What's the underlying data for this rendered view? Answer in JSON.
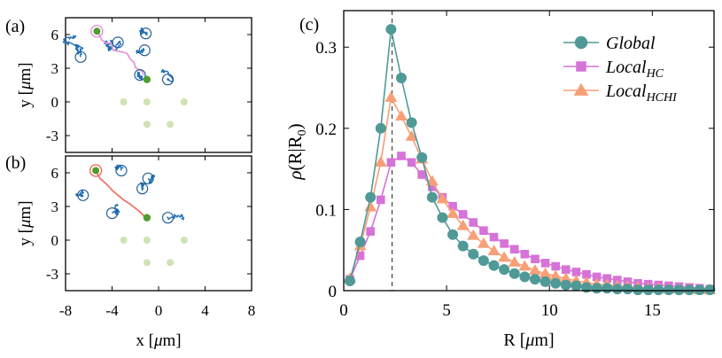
{
  "colors": {
    "global": "#4f9a97",
    "local_hc": "#d672d8",
    "local_hchi": "#f7a077",
    "traj_blue": "#1f6fb5",
    "traj_pink": "#e49ad8",
    "traj_red": "#ee7468",
    "target_green": "#4f9d2e",
    "faint_green": "#cfe3b6",
    "marker_edge_blue": "#235f9a"
  },
  "panels": {
    "a": {
      "label": "(a)",
      "ylabel_y": "y [",
      "ylabel_mu": "μ",
      "ylabel_m": "m]",
      "yticks": [
        "6",
        "3",
        "0",
        "-3"
      ],
      "ytick_values": [
        6,
        3,
        0,
        -3
      ],
      "ylim": [
        -4.5,
        7.5
      ],
      "xlim": [
        -8,
        8
      ]
    },
    "b": {
      "label": "(b)",
      "ylabel_y": "y [",
      "ylabel_mu": "μ",
      "ylabel_m": "m]",
      "yticks": [
        "6",
        "3",
        "0",
        "-3"
      ],
      "ytick_values": [
        6,
        3,
        0,
        -3
      ],
      "ylim": [
        -4.5,
        7.5
      ],
      "xlim": [
        -8,
        8
      ],
      "xticks": [
        "-8",
        "-4",
        "0",
        "4",
        "8"
      ],
      "xtick_values": [
        -8,
        -4,
        0,
        4,
        8
      ],
      "xlabel_x": "x [",
      "xlabel_mu": "μ",
      "xlabel_m": "m]"
    },
    "c": {
      "label": "(c)"
    }
  },
  "chart_data": [
    {
      "panel": "a",
      "type": "scatter",
      "title": "",
      "xlabel": "x [μm]",
      "ylabel": "y [μm]",
      "xlim": [
        -8,
        8
      ],
      "ylim": [
        -4.5,
        7.5
      ],
      "faint_sites": [
        [
          -3,
          0
        ],
        [
          -1,
          0
        ],
        [
          -1,
          -2
        ],
        [
          1,
          -2
        ],
        [
          2.2,
          0
        ]
      ],
      "target": [
        -1,
        2
      ],
      "start": [
        -5.3,
        6.3
      ],
      "circle_markers": [
        [
          -1.1,
          6.1
        ],
        [
          -3.5,
          5.3
        ],
        [
          -1.2,
          4.6
        ],
        [
          -6.7,
          4
        ],
        [
          -1.6,
          2.4
        ],
        [
          0.8,
          2
        ]
      ],
      "path_pink": [
        [
          -5.3,
          6.3
        ],
        [
          -5.1,
          5.9
        ],
        [
          -5,
          5.5
        ],
        [
          -4.6,
          5.3
        ],
        [
          -4.1,
          5.2
        ],
        [
          -3.8,
          4.7
        ],
        [
          -3.3,
          4.4
        ],
        [
          -2.8,
          4.3
        ],
        [
          -2.4,
          3.9
        ],
        [
          -2.2,
          3.4
        ],
        [
          -1.9,
          3
        ],
        [
          -1.5,
          2.7
        ],
        [
          -1.3,
          2.4
        ]
      ]
    },
    {
      "panel": "b",
      "type": "scatter",
      "title": "",
      "xlabel": "x [μm]",
      "ylabel": "y [μm]",
      "xlim": [
        -8,
        8
      ],
      "ylim": [
        -4.5,
        7.5
      ],
      "xticks": [
        -8,
        -4,
        0,
        4,
        8
      ],
      "faint_sites": [
        [
          -3,
          0
        ],
        [
          -1,
          0
        ],
        [
          -1,
          -2
        ],
        [
          1,
          -2
        ],
        [
          2.2,
          0
        ]
      ],
      "target": [
        -1,
        2
      ],
      "start": [
        -5.4,
        6.2
      ],
      "circle_markers": [
        [
          -3.2,
          6.2
        ],
        [
          -0.9,
          5.5
        ],
        [
          -1.4,
          4.6
        ],
        [
          -6.5,
          4
        ],
        [
          -4,
          2.4
        ],
        [
          0.8,
          2
        ]
      ],
      "path_red": [
        [
          -5.4,
          6.2
        ],
        [
          -5,
          5.6
        ],
        [
          -4.5,
          5.1
        ],
        [
          -3.9,
          4.5
        ],
        [
          -3.1,
          3.7
        ],
        [
          -2.4,
          3.1
        ],
        [
          -1.6,
          2.5
        ],
        [
          -1.1,
          2
        ]
      ]
    },
    {
      "panel": "c",
      "type": "line",
      "title": "",
      "xlabel": "R [μm]",
      "ylabel": "ρ(R|R0)",
      "xlim": [
        0,
        18
      ],
      "ylim": [
        0,
        0.345
      ],
      "xticks": [
        0,
        5,
        10,
        15
      ],
      "yticks": [
        0,
        0.1,
        0.2,
        0.3
      ],
      "vline_x": 2.35,
      "series": [
        {
          "name": "Global",
          "marker": "circle",
          "x": [
            0.3,
            0.8,
            1.3,
            1.8,
            2.3,
            2.8,
            3.3,
            3.8,
            4.3,
            4.8,
            5.3,
            5.8,
            6.3,
            6.8,
            7.3,
            7.8,
            8.3,
            8.8,
            9.3,
            9.8,
            10.3,
            10.8,
            11.3,
            11.8,
            12.3,
            12.8,
            13.3,
            13.8,
            14.3,
            14.8,
            15.3,
            15.8,
            16.3,
            16.8,
            17.3,
            17.8
          ],
          "values": [
            0.012,
            0.06,
            0.115,
            0.2,
            0.322,
            0.262,
            0.207,
            0.164,
            0.115,
            0.09,
            0.069,
            0.055,
            0.045,
            0.037,
            0.031,
            0.026,
            0.021,
            0.017,
            0.014,
            0.011,
            0.009,
            0.007,
            0.006,
            0.004,
            0.003,
            0.003,
            0.002,
            0.002,
            0.001,
            0.001,
            0.001,
            0.001,
            0.001,
            0.001,
            0.001,
            0.001
          ]
        },
        {
          "name": "Local",
          "sub": "HC",
          "marker": "square",
          "x": [
            0.3,
            0.8,
            1.3,
            1.8,
            2.3,
            2.8,
            3.3,
            3.8,
            4.3,
            4.8,
            5.3,
            5.8,
            6.3,
            6.8,
            7.3,
            7.8,
            8.3,
            8.8,
            9.3,
            9.8,
            10.3,
            10.8,
            11.3,
            11.8,
            12.3,
            12.8,
            13.3,
            13.8,
            14.3,
            14.8,
            15.3,
            15.8,
            16.3,
            16.8,
            17.3,
            17.8
          ],
          "values": [
            0.014,
            0.043,
            0.073,
            0.112,
            0.158,
            0.166,
            0.158,
            0.143,
            0.128,
            0.115,
            0.104,
            0.094,
            0.084,
            0.074,
            0.066,
            0.058,
            0.051,
            0.045,
            0.039,
            0.034,
            0.03,
            0.026,
            0.023,
            0.02,
            0.017,
            0.015,
            0.013,
            0.011,
            0.009,
            0.008,
            0.007,
            0.006,
            0.005,
            0.004,
            0.003,
            0.002
          ]
        },
        {
          "name": "Local",
          "sub": "HCHI",
          "marker": "triangle",
          "x": [
            0.3,
            0.8,
            1.3,
            1.8,
            2.3,
            2.8,
            3.3,
            3.8,
            4.3,
            4.8,
            5.3,
            5.8,
            6.3,
            6.8,
            7.3,
            7.8,
            8.3,
            8.8,
            9.3,
            9.8,
            10.3,
            10.8,
            11.3,
            11.8,
            12.3,
            12.8,
            13.3,
            13.8,
            14.3,
            14.8,
            15.3,
            15.8,
            16.3,
            16.8,
            17.3,
            17.8
          ],
          "values": [
            0.015,
            0.055,
            0.103,
            0.158,
            0.238,
            0.215,
            0.19,
            0.162,
            0.135,
            0.113,
            0.095,
            0.08,
            0.068,
            0.058,
            0.049,
            0.041,
            0.035,
            0.03,
            0.025,
            0.021,
            0.018,
            0.015,
            0.012,
            0.01,
            0.008,
            0.007,
            0.006,
            0.005,
            0.004,
            0.003,
            0.003,
            0.002,
            0.002,
            0.002,
            0.001,
            0.001
          ]
        }
      ],
      "xlabel_R": "R [",
      "xlabel_mu": "μ",
      "xlabel_m": "m]",
      "ylabel_rho": "ρ",
      "ylabel_paren": "(R|R",
      "ylabel_sub": "0",
      "ylabel_close": ")",
      "xtick_labels": [
        "0",
        "5",
        "10",
        "15"
      ],
      "ytick_labels": [
        "0",
        "0.1",
        "0.2",
        "0.3"
      ]
    }
  ]
}
